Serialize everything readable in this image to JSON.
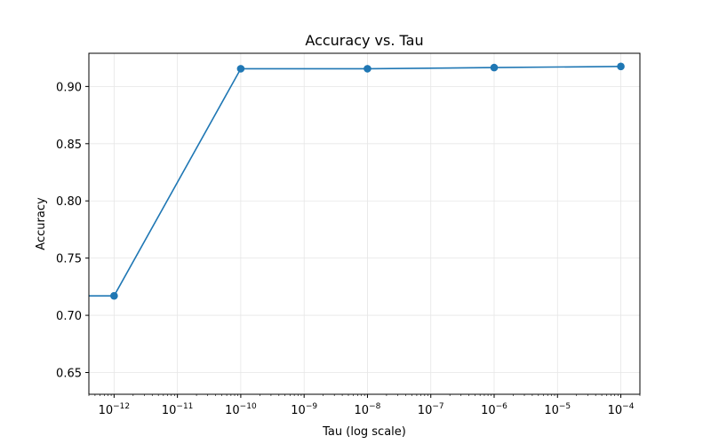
{
  "chart_data": {
    "type": "line",
    "title": "Accuracy vs. Tau",
    "xlabel": "Tau (log scale)",
    "ylabel": "Accuracy",
    "x_scale": "log",
    "grid": true,
    "legend": "none",
    "xlim": [
      4e-13,
      0.0002
    ],
    "ylim": [
      0.631,
      0.929
    ],
    "x_ticks": [
      {
        "base": "10",
        "exp": "−12",
        "value": 1e-12
      },
      {
        "base": "10",
        "exp": "−11",
        "value": 1e-11
      },
      {
        "base": "10",
        "exp": "−10",
        "value": 1e-10
      },
      {
        "base": "10",
        "exp": "−9",
        "value": 1e-09
      },
      {
        "base": "10",
        "exp": "−8",
        "value": 1e-08
      },
      {
        "base": "10",
        "exp": "−7",
        "value": 1e-07
      },
      {
        "base": "10",
        "exp": "−6",
        "value": 1e-06
      },
      {
        "base": "10",
        "exp": "−5",
        "value": 1e-05
      },
      {
        "base": "10",
        "exp": "−4",
        "value": 0.0001
      }
    ],
    "y_ticks": [
      {
        "label": "0.65",
        "value": 0.65
      },
      {
        "label": "0.70",
        "value": 0.7
      },
      {
        "label": "0.75",
        "value": 0.75
      },
      {
        "label": "0.80",
        "value": 0.8
      },
      {
        "label": "0.85",
        "value": 0.85
      },
      {
        "label": "0.90",
        "value": 0.9
      }
    ],
    "series": [
      {
        "color": "#1f77b4",
        "x": [
          1e-14,
          1e-12,
          1e-10,
          1e-08,
          1e-06,
          0.0001
        ],
        "y": [
          0.717,
          0.717,
          0.9155,
          0.9155,
          0.9165,
          0.9175
        ]
      }
    ]
  }
}
